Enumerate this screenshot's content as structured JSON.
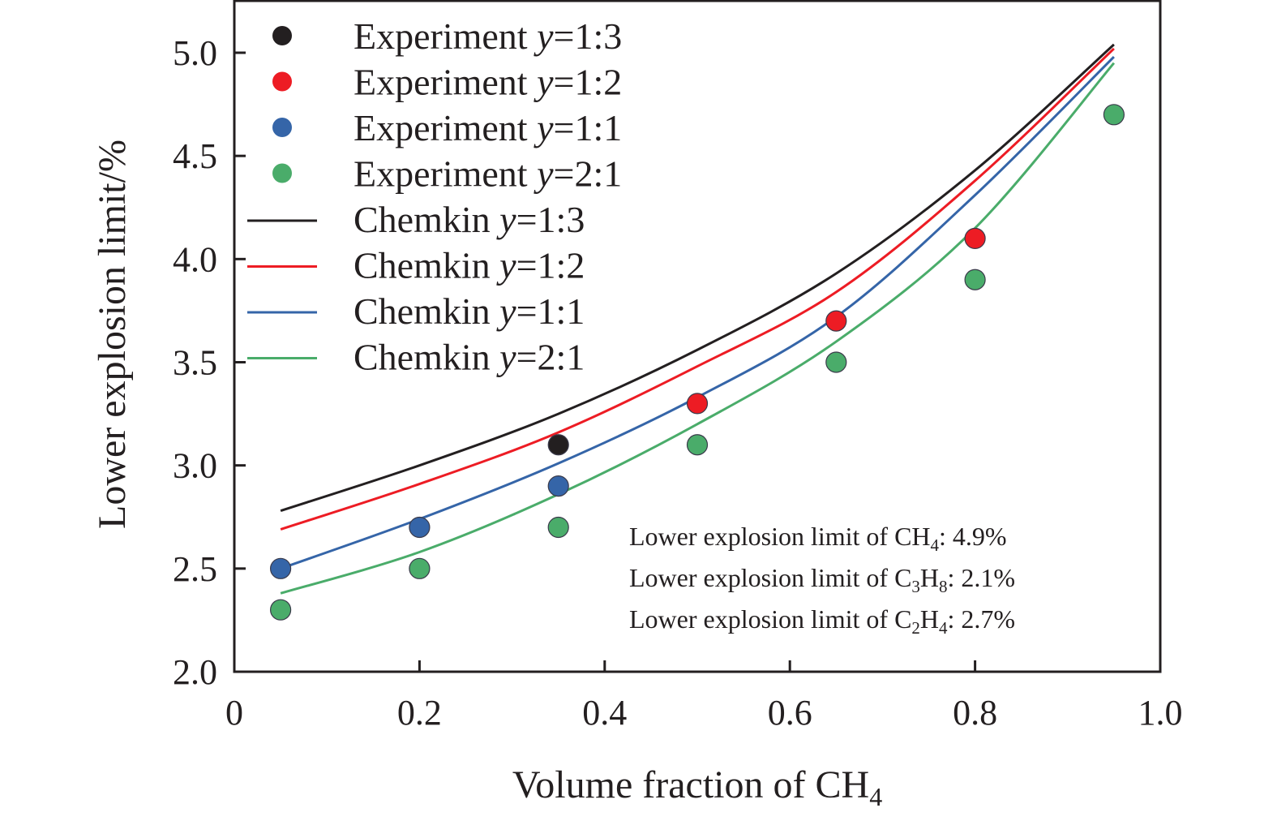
{
  "chart_data": {
    "type": "scatter",
    "title": "",
    "xlabel": "Volume fraction of CH",
    "xlabel_subscript": "4",
    "ylabel": "Lower explosion limit/%",
    "xlim": [
      0,
      1.0
    ],
    "ylim": [
      2.0,
      5.2
    ],
    "x_ticks": [
      0,
      0.2,
      0.4,
      0.6,
      0.8,
      1.0
    ],
    "x_tick_labels": [
      "0",
      "0.2",
      "0.4",
      "0.6",
      "0.8",
      "1.0"
    ],
    "y_ticks": [
      2.0,
      2.5,
      3.0,
      3.5,
      4.0,
      4.5,
      5.0
    ],
    "y_tick_labels": [
      "2.0",
      "2.5",
      "3.0",
      "3.5",
      "4.0",
      "4.5",
      "5.0"
    ],
    "grid": false,
    "legend_position": "top-left",
    "experiment_series": [
      {
        "name": "Experiment",
        "ratio": "y=1:3",
        "color": "#231f20",
        "x": [
          0.35
        ],
        "y": [
          3.1
        ]
      },
      {
        "name": "Experiment",
        "ratio": "y=1:2",
        "color": "#ed1c24",
        "x": [
          0.5,
          0.65,
          0.8
        ],
        "y": [
          3.3,
          3.7,
          4.1
        ]
      },
      {
        "name": "Experiment",
        "ratio": "y=1:1",
        "color": "#3565a8",
        "x": [
          0.05,
          0.2,
          0.35
        ],
        "y": [
          2.5,
          2.7,
          2.9
        ]
      },
      {
        "name": "Experiment",
        "ratio": "y=2:1",
        "color": "#4aac6a",
        "x": [
          0.05,
          0.2,
          0.35,
          0.5,
          0.65,
          0.8,
          0.95
        ],
        "y": [
          2.3,
          2.5,
          2.7,
          3.1,
          3.5,
          3.9,
          4.7
        ]
      }
    ],
    "chemkin_series": [
      {
        "name": "Chemkin",
        "ratio": "y=1:3",
        "color": "#231f20",
        "x": [
          0.05,
          0.2,
          0.35,
          0.5,
          0.65,
          0.8,
          0.95
        ],
        "y": [
          2.78,
          3.0,
          3.25,
          3.56,
          3.93,
          4.43,
          5.04
        ]
      },
      {
        "name": "Chemkin",
        "ratio": "y=1:2",
        "color": "#ed1c24",
        "x": [
          0.05,
          0.2,
          0.35,
          0.5,
          0.65,
          0.8,
          0.95
        ],
        "y": [
          2.69,
          2.91,
          3.16,
          3.48,
          3.84,
          4.38,
          5.02
        ]
      },
      {
        "name": "Chemkin",
        "ratio": "y=1:1",
        "color": "#3565a8",
        "x": [
          0.05,
          0.2,
          0.35,
          0.5,
          0.65,
          0.8,
          0.95
        ],
        "y": [
          2.5,
          2.74,
          3.01,
          3.33,
          3.72,
          4.31,
          4.98
        ]
      },
      {
        "name": "Chemkin",
        "ratio": "y=2:1",
        "color": "#4aac6a",
        "x": [
          0.05,
          0.2,
          0.35,
          0.5,
          0.65,
          0.8,
          0.95
        ],
        "y": [
          2.38,
          2.58,
          2.86,
          3.2,
          3.6,
          4.15,
          4.95
        ]
      }
    ],
    "annotations": [
      {
        "prefix": "Lower explosion limit of ",
        "formula": [
          [
            "C",
            ""
          ],
          [
            "H",
            "4"
          ]
        ],
        "value": ": 4.9%"
      },
      {
        "prefix": "Lower explosion limit of ",
        "formula": [
          [
            "C",
            "3"
          ],
          [
            "H",
            "8"
          ]
        ],
        "value": ": 2.1%"
      },
      {
        "prefix": "Lower explosion limit of ",
        "formula": [
          [
            "C",
            "2"
          ],
          [
            "H",
            "4"
          ]
        ],
        "value": ": 2.7%"
      }
    ]
  }
}
